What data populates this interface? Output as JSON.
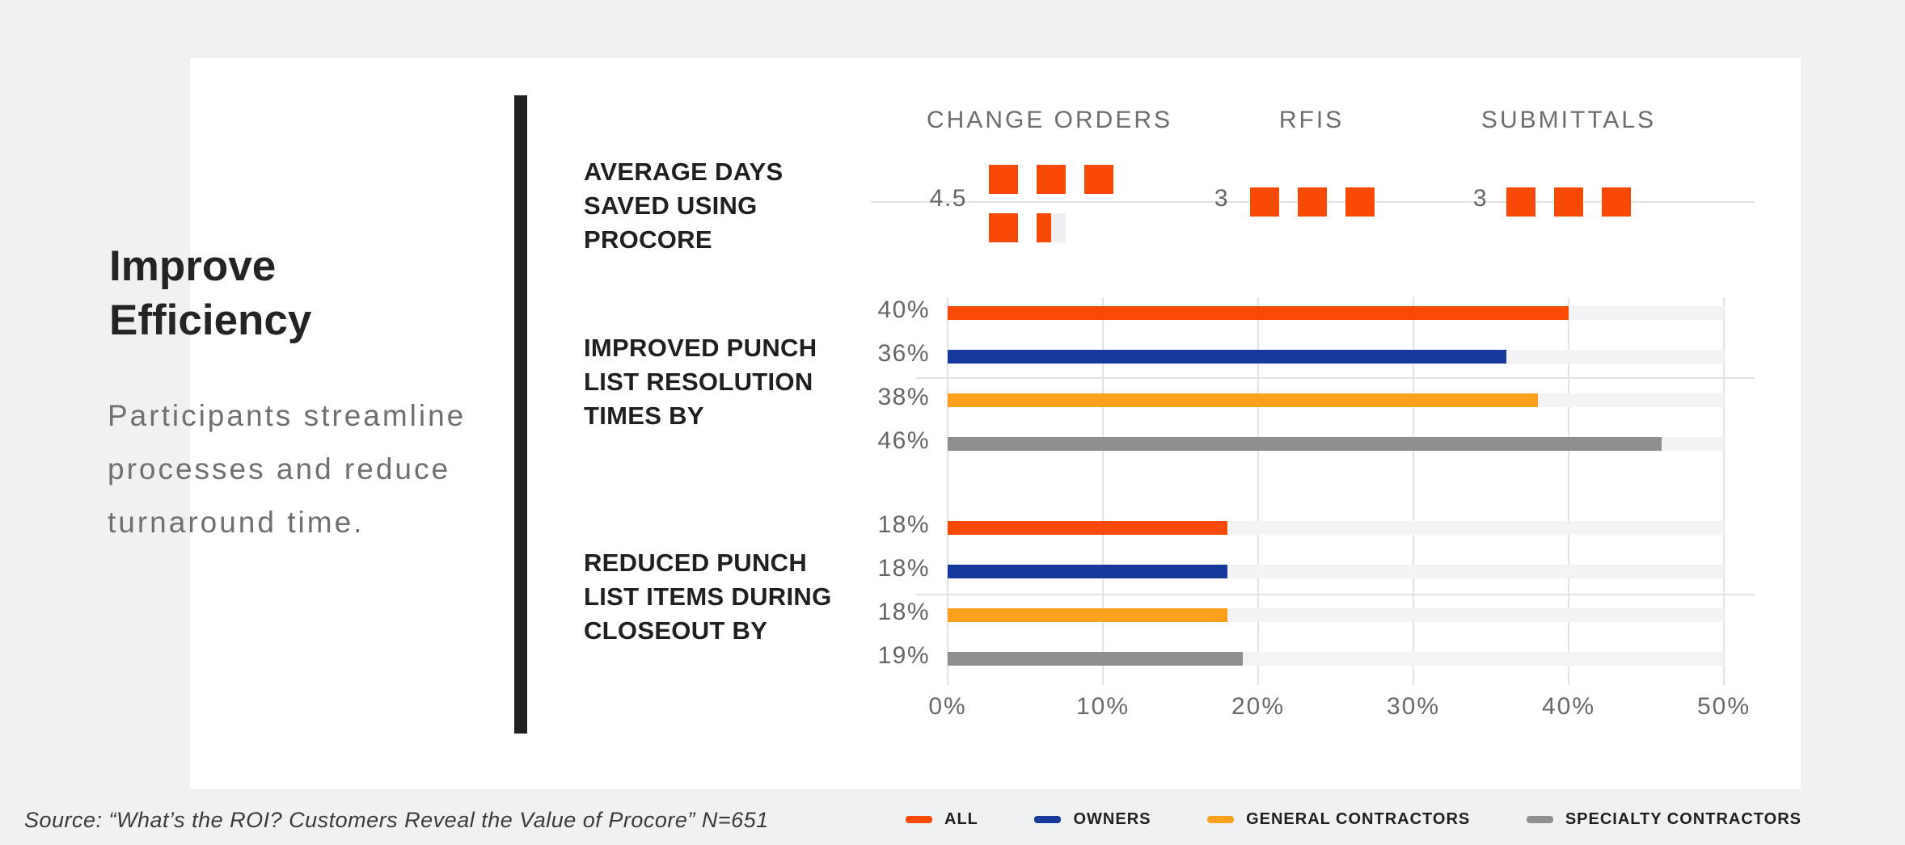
{
  "page": {
    "source_note": "Source: “What’s the ROI? Customers Reveal the Value of Procore” N=651"
  },
  "panel": {
    "title_lines": [
      "Improve",
      "Efficiency"
    ],
    "subtitle_lines": [
      "Participants streamline",
      "processes and reduce",
      "turnaround time."
    ]
  },
  "colors": {
    "all": "#F94A08",
    "owners": "#17399E",
    "general_contractors": "#FBA11D",
    "specialty_contractors": "#8F8F90",
    "ghost_square": "#F0F0F2",
    "bar_track": "#F3F3F5",
    "gridline": "#E4E4E7",
    "divider": "#212121",
    "page_background": "#F0F1F3",
    "card_background": "#FFFFFF"
  },
  "legend": [
    {
      "label": "ALL",
      "color": "#F94A08"
    },
    {
      "label": "OWNERS",
      "color": "#17399E"
    },
    {
      "label": "GENERAL CONTRACTORS",
      "color": "#FBA11D"
    },
    {
      "label": "SPECIALTY CONTRACTORS",
      "color": "#8F8F90"
    }
  ],
  "chart_data": {
    "type": "bar",
    "title": "",
    "column_headers": [
      "CHANGE ORDERS",
      "RFIS",
      "SUBMITTALS"
    ],
    "groups": [
      {
        "label_lines": [
          "AVERAGE DAYS",
          "SAVED USING",
          "PROCORE"
        ],
        "type": "unit-squares",
        "unit": "days saved",
        "items": [
          {
            "category": "CHANGE ORDERS",
            "value": 4.5,
            "display": "4.5"
          },
          {
            "category": "RFIS",
            "value": 3,
            "display": "3"
          },
          {
            "category": "SUBMITTALS",
            "value": 3,
            "display": "3"
          }
        ]
      },
      {
        "label_lines": [
          "IMPROVED PUNCH",
          "LIST RESOLUTION",
          "TIMES BY"
        ],
        "type": "hbar",
        "series": [
          {
            "name": "ALL",
            "value": 40,
            "display": "40%",
            "color": "#F94A08"
          },
          {
            "name": "OWNERS",
            "value": 36,
            "display": "36%",
            "color": "#17399E"
          },
          {
            "name": "GENERAL CONTRACTORS",
            "value": 38,
            "display": "38%",
            "color": "#FBA11D"
          },
          {
            "name": "SPECIALTY CONTRACTORS",
            "value": 46,
            "display": "46%",
            "color": "#8F8F90"
          }
        ]
      },
      {
        "label_lines": [
          "REDUCED PUNCH",
          "LIST ITEMS DURING",
          "CLOSEOUT BY"
        ],
        "type": "hbar",
        "series": [
          {
            "name": "ALL",
            "value": 18,
            "display": "18%",
            "color": "#F94A08"
          },
          {
            "name": "OWNERS",
            "value": 18,
            "display": "18%",
            "color": "#17399E"
          },
          {
            "name": "GENERAL CONTRACTORS",
            "value": 18,
            "display": "18%",
            "color": "#FBA11D"
          },
          {
            "name": "SPECIALTY CONTRACTORS",
            "value": 19,
            "display": "19%",
            "color": "#8F8F90"
          }
        ]
      }
    ],
    "x_axis": {
      "tick_labels": [
        "0%",
        "10%",
        "20%",
        "30%",
        "40%",
        "50%"
      ],
      "min": 0,
      "max": 50,
      "unit": "%"
    },
    "grid": true,
    "legend_position": "bottom-right"
  }
}
